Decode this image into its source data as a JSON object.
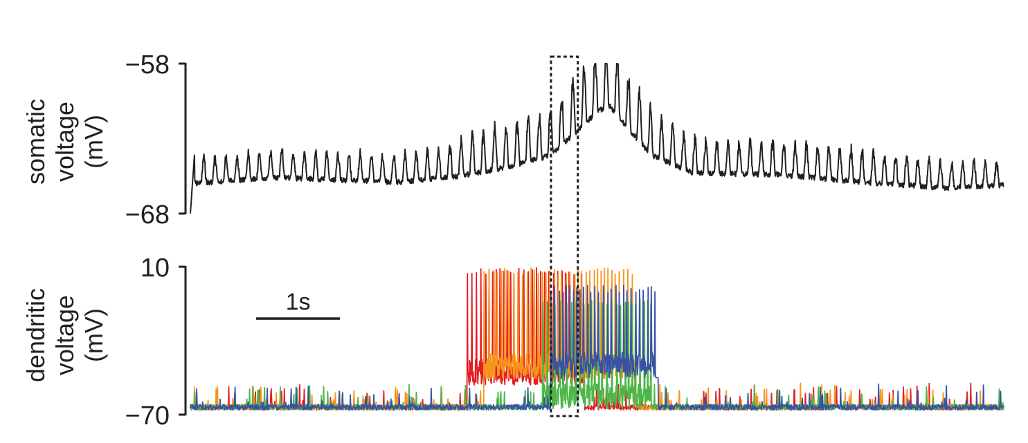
{
  "chart_data": [
    {
      "type": "line",
      "ylabel_lines": [
        "somatic",
        "voltage",
        "(mV)"
      ],
      "yticks": [
        -58,
        -68
      ],
      "ytick_labels": [
        "−58",
        "−68"
      ],
      "ylim": [
        -68,
        -58
      ],
      "xlim": [
        0,
        9.7
      ],
      "series": [
        {
          "color": "#231f20",
          "envelope": [
            [
              0,
              -66
            ],
            [
              1.0,
              -65.6
            ],
            [
              2.5,
              -65.9
            ],
            [
              3.2,
              -65.5
            ],
            [
              3.8,
              -64.9
            ],
            [
              4.3,
              -64.1
            ],
            [
              4.6,
              -62.6
            ],
            [
              4.85,
              -61.2
            ],
            [
              5.0,
              -60.8
            ],
            [
              5.2,
              -62.2
            ],
            [
              5.5,
              -64.1
            ],
            [
              6.0,
              -65.3
            ],
            [
              7.0,
              -65.4
            ],
            [
              8.0,
              -65.9
            ],
            [
              9.0,
              -66.3
            ],
            [
              9.7,
              -66.1
            ]
          ],
          "amplitude": [
            [
              0,
              1.7
            ],
            [
              3.0,
              2.0
            ],
            [
              3.3,
              2.8
            ],
            [
              4.2,
              3.0
            ],
            [
              4.6,
              3.8
            ],
            [
              4.95,
              4.4
            ],
            [
              5.2,
              3.8
            ],
            [
              5.6,
              2.8
            ],
            [
              6.3,
              2.2
            ],
            [
              7.5,
              2.3
            ],
            [
              8.7,
              1.9
            ],
            [
              9.7,
              1.6
            ]
          ],
          "oscillation_hz": 7.5
        }
      ]
    },
    {
      "type": "line",
      "ylabel_lines": [
        "dendritic",
        "voltage",
        "(mV)"
      ],
      "yticks": [
        10,
        -70
      ],
      "ytick_labels": [
        "10",
        "−70"
      ],
      "ylim": [
        -70,
        10
      ],
      "xlim": [
        0,
        9.7
      ],
      "series": [
        {
          "color": "#e31e24",
          "burst": [
            3.3,
            4.7
          ],
          "peak": 9.5,
          "plateau": -47
        },
        {
          "color": "#f7941d",
          "burst": [
            3.5,
            5.3
          ],
          "peak": 9.5,
          "plateau": -44
        },
        {
          "color": "#4cb748",
          "burst": [
            4.2,
            5.5
          ],
          "peak": -7,
          "plateau": -60
        },
        {
          "color": "#3853a4",
          "burst": [
            4.3,
            5.55
          ],
          "peak": 0,
          "plateau": -43
        }
      ]
    }
  ],
  "highlight_window": [
    4.3,
    4.62
  ],
  "scale_bar": {
    "seconds": 1,
    "label": "1s"
  }
}
